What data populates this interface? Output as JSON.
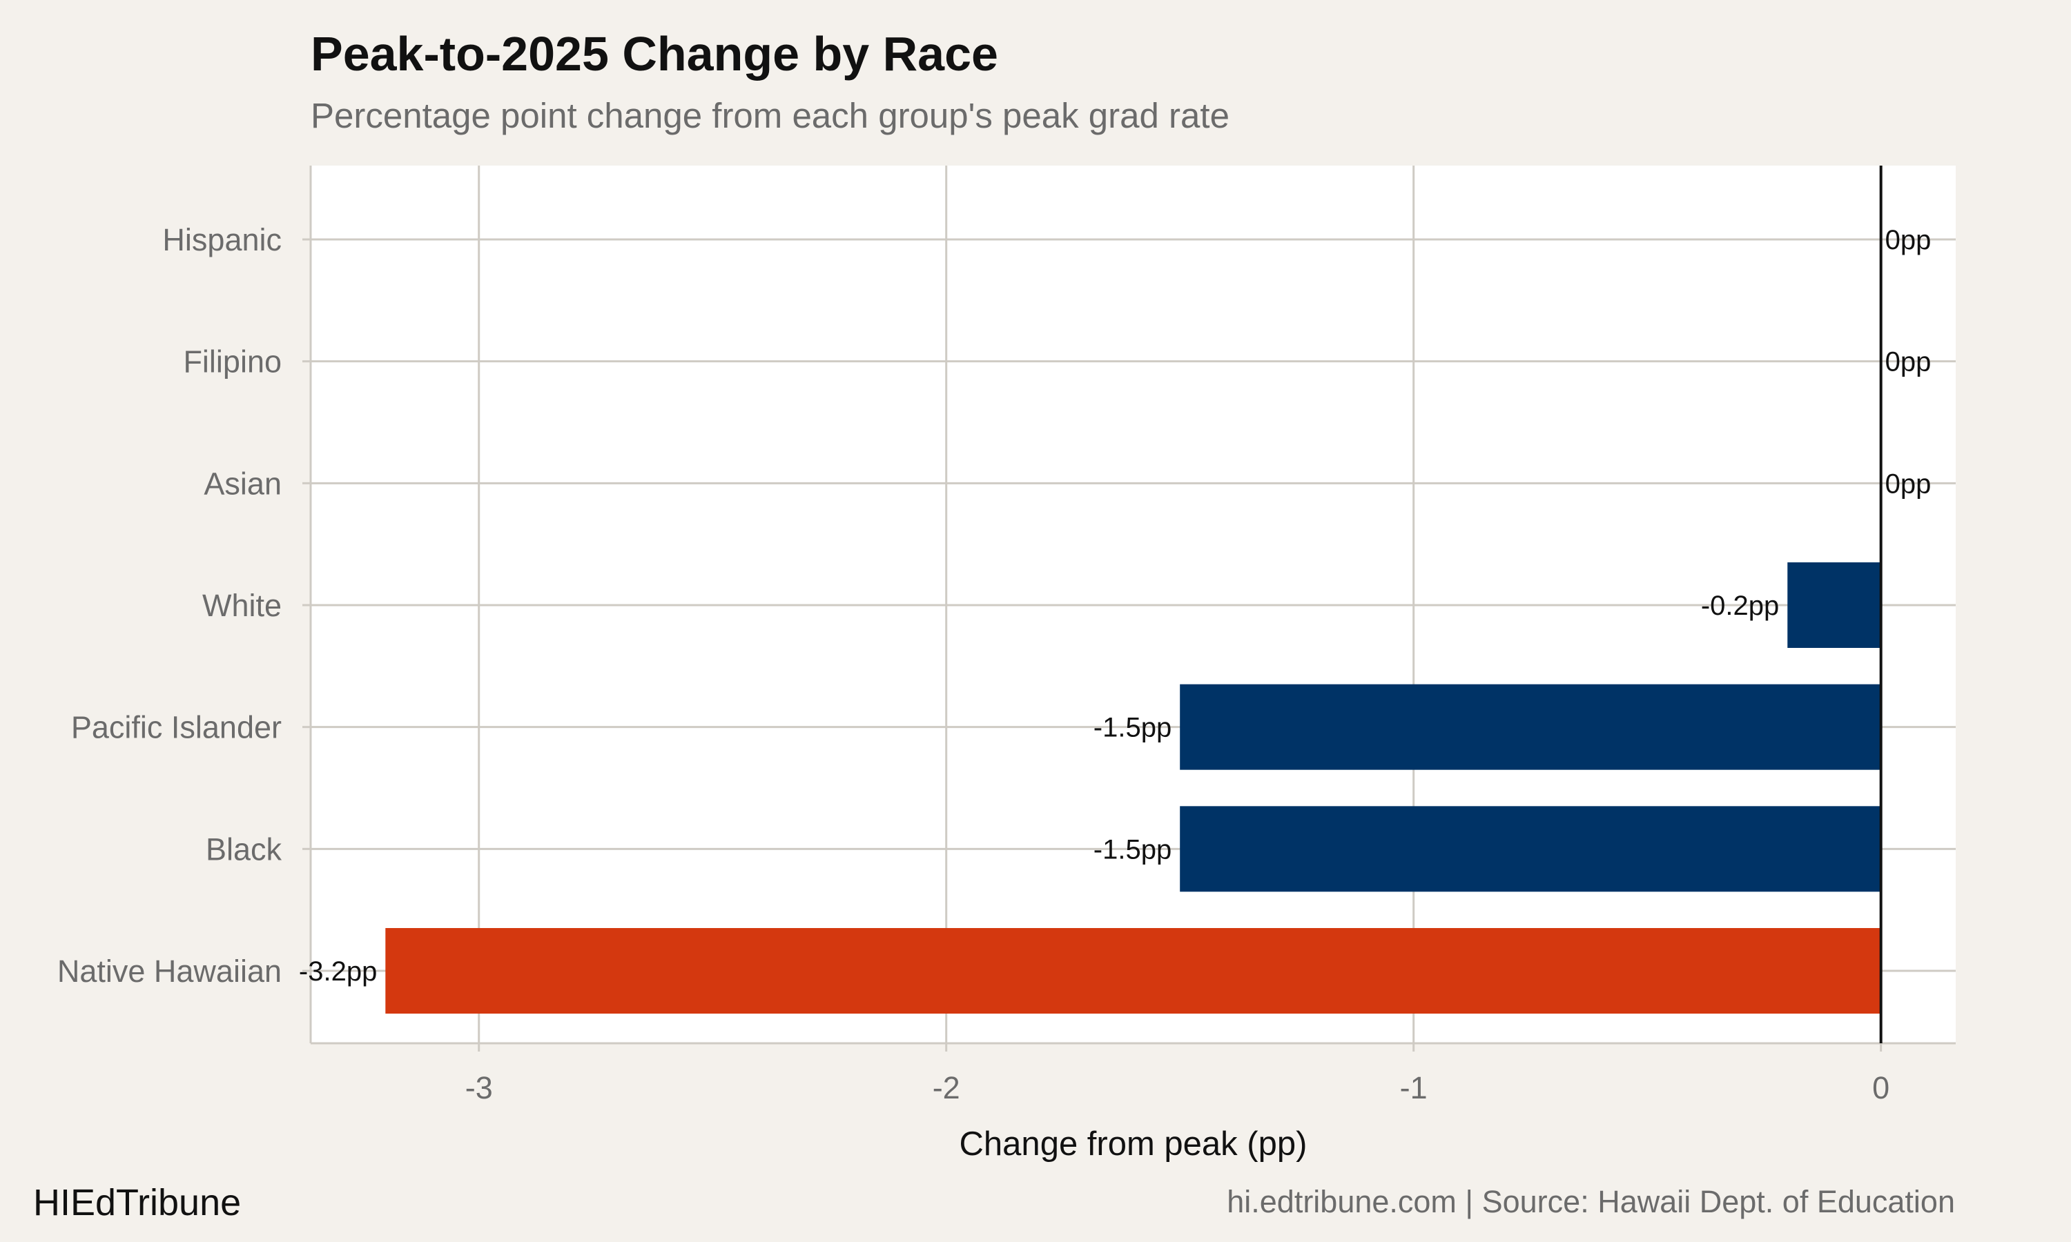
{
  "header": {
    "title": "Peak-to-2025 Change by Race",
    "subtitle": "Percentage point change from each group's peak grad rate"
  },
  "footer": {
    "brand": "HIEdTribune",
    "source": "hi.edtribune.com | Source: Hawaii Dept. of Education"
  },
  "colors": {
    "background": "#f4f1ec",
    "panel": "#ffffff",
    "grid": "#cfcbc4",
    "bar_default": "#003366",
    "bar_highlight": "#d4380f",
    "zero_line": "#111111"
  },
  "chart_data": {
    "type": "bar",
    "orientation": "horizontal",
    "title": "Peak-to-2025 Change by Race",
    "subtitle": "Percentage point change from each group's peak grad rate",
    "xlabel": "Change from peak (pp)",
    "ylabel": "",
    "categories": [
      "Hispanic",
      "Filipino",
      "Asian",
      "White",
      "Pacific Islander",
      "Black",
      "Native Hawaiian"
    ],
    "values": [
      0,
      0,
      0,
      -0.2,
      -1.5,
      -1.5,
      -3.2
    ],
    "data_labels": [
      "0pp",
      "0pp",
      "0pp",
      "-0.2pp",
      "-1.5pp",
      "-1.5pp",
      "-3.2pp"
    ],
    "highlight": [
      "Native Hawaiian"
    ],
    "xlim": [
      -3.36,
      0.16
    ],
    "xticks": [
      -3,
      -2,
      -1,
      0
    ],
    "xtick_labels": [
      "-3",
      "-2",
      "-1",
      "0"
    ],
    "grid": true,
    "legend": "none"
  }
}
